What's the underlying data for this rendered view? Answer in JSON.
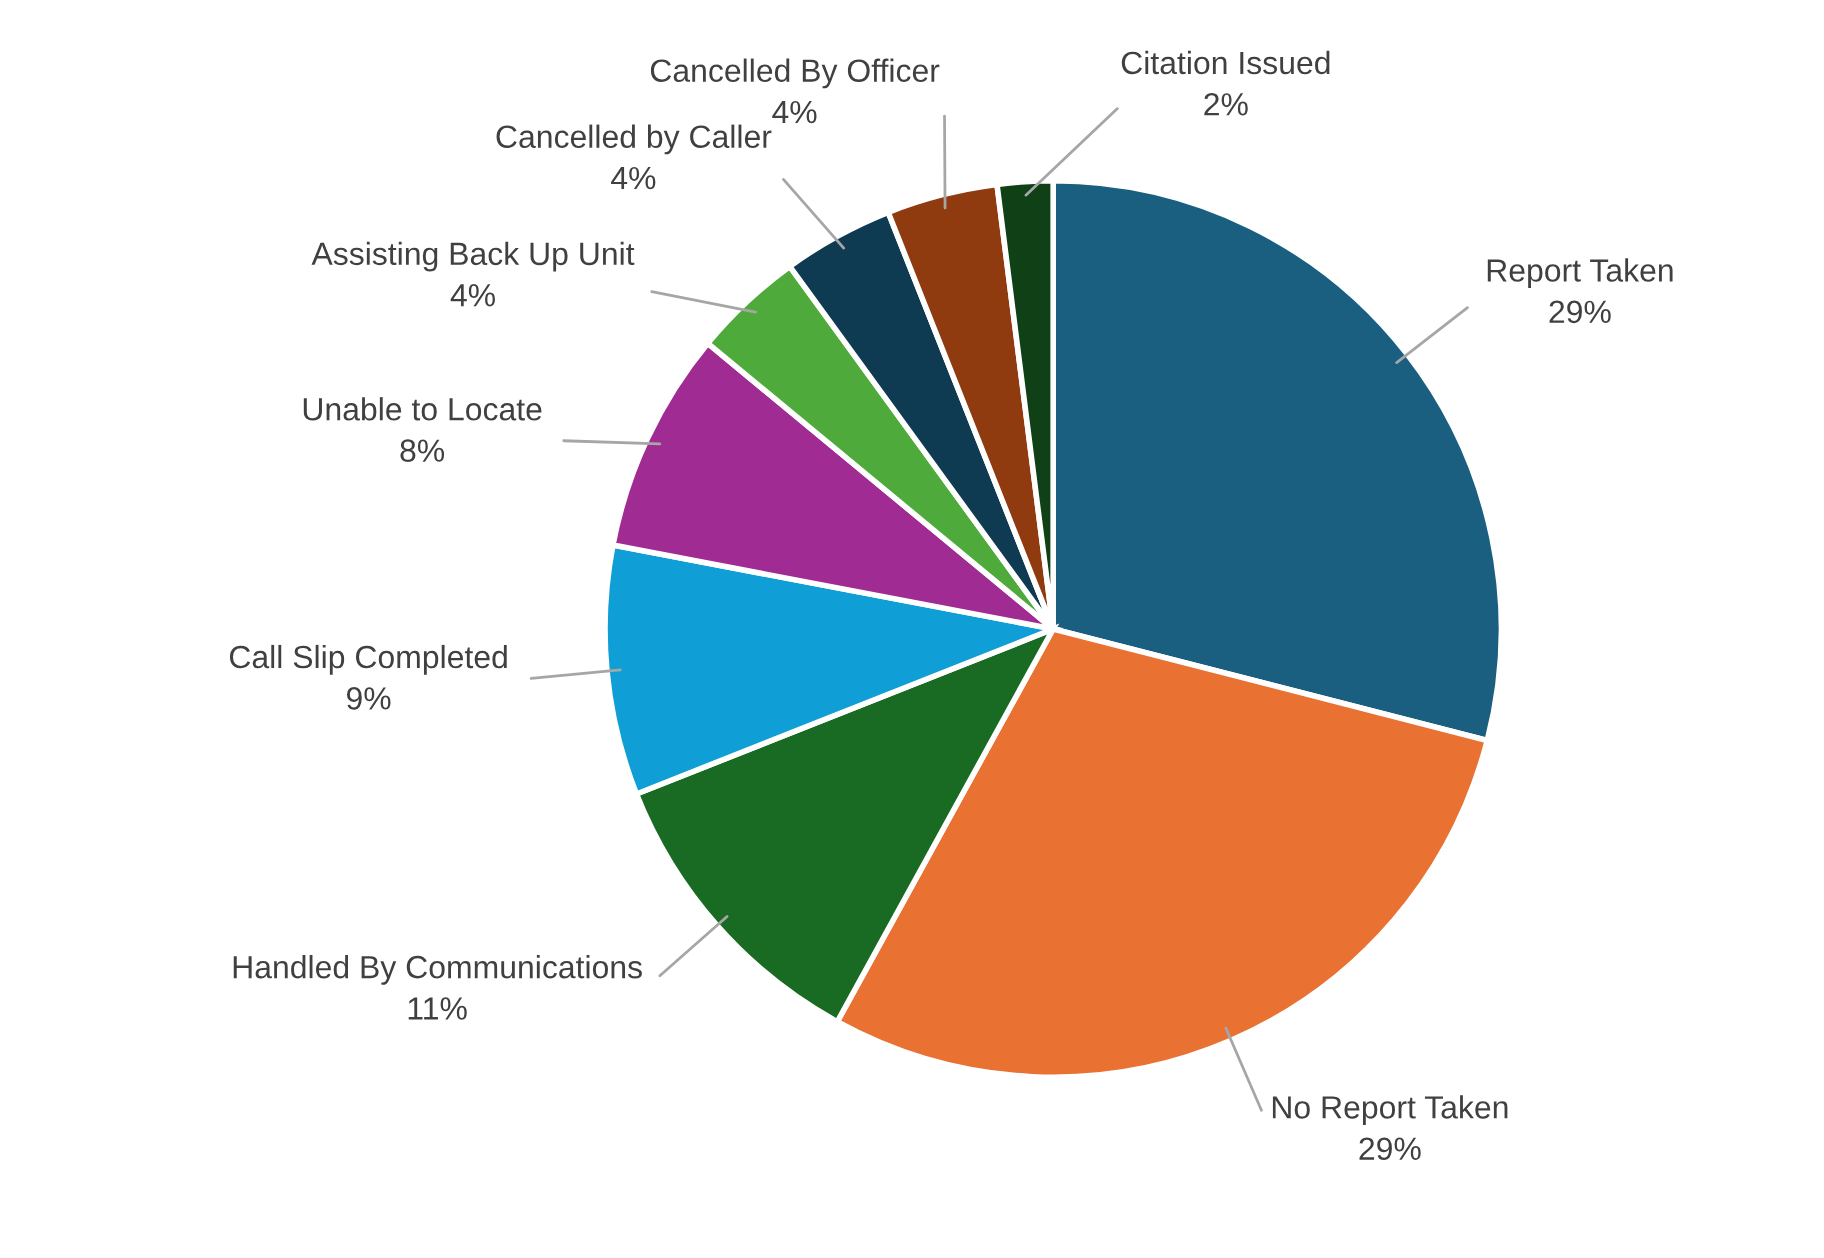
{
  "chart_data": {
    "type": "pie",
    "categories": [
      "Report Taken",
      "No Report Taken",
      "Handled By Communications",
      "Call Slip Completed",
      "Unable to Locate",
      "Assisting Back Up Unit",
      "Cancelled by Caller",
      "Cancelled By Officer",
      "Citation Issued"
    ],
    "values": [
      29,
      29,
      11,
      9,
      8,
      4,
      4,
      4,
      2
    ],
    "colors": [
      "#1a5e80",
      "#e97132",
      "#196b24",
      "#0f9ed5",
      "#a02b93",
      "#4eaa3a",
      "#0e3a52",
      "#8f3a0f",
      "#0f4016"
    ],
    "value_labels": [
      "29%",
      "29%",
      "11%",
      "9%",
      "8%",
      "4%",
      "4%",
      "4%",
      "2%"
    ]
  }
}
